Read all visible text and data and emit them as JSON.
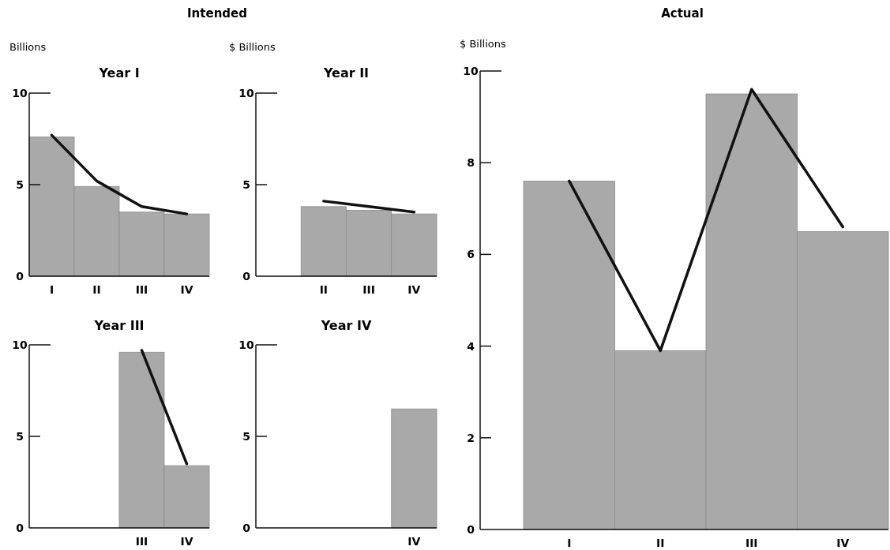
{
  "chart_data": [
    {
      "type": "bar",
      "title": "Year I",
      "ylabel": "Billions",
      "annotations": [
        "Intended"
      ],
      "categories": [
        "I",
        "II",
        "III",
        "IV"
      ],
      "ylim": [
        0,
        10
      ],
      "yticks": [
        0,
        5,
        10
      ],
      "series": [
        {
          "color": "#a9a9a9",
          "values": [
            7.6,
            4.9,
            3.5,
            3.4
          ]
        },
        {
          "type": "line",
          "color": "#111111",
          "values": [
            7.7,
            5.2,
            3.8,
            3.4
          ]
        }
      ]
    },
    {
      "type": "bar",
      "title": "Year II",
      "ylabel": "$ Billions",
      "categories": [
        null,
        "II",
        "III",
        "IV"
      ],
      "ylim": [
        0,
        10
      ],
      "yticks": [
        0,
        5,
        10
      ],
      "series": [
        {
          "color": "#a9a9a9",
          "values": [
            null,
            3.8,
            3.6,
            3.4
          ]
        },
        {
          "type": "line",
          "color": "#111111",
          "values": [
            null,
            4.1,
            3.8,
            3.5
          ]
        }
      ]
    },
    {
      "type": "bar",
      "title": "Year III",
      "categories": [
        null,
        null,
        "III",
        "IV"
      ],
      "ylim": [
        0,
        10
      ],
      "yticks": [
        0,
        5,
        10
      ],
      "series": [
        {
          "color": "#a9a9a9",
          "values": [
            null,
            null,
            9.6,
            3.4
          ]
        },
        {
          "type": "line",
          "color": "#111111",
          "values": [
            null,
            null,
            9.7,
            3.5
          ]
        }
      ]
    },
    {
      "type": "bar",
      "title": "Year IV",
      "categories": [
        null,
        null,
        null,
        "IV"
      ],
      "ylim": [
        0,
        10
      ],
      "yticks": [
        0,
        5,
        10
      ],
      "series": [
        {
          "color": "#a9a9a9",
          "values": [
            null,
            null,
            null,
            6.5
          ]
        }
      ]
    },
    {
      "type": "bar",
      "title": "Actual",
      "ylabel": "$ Billions",
      "categories": [
        "I",
        "II",
        "III",
        "IV"
      ],
      "ylim": [
        0,
        10
      ],
      "yticks": [
        0,
        2,
        4,
        6,
        8,
        10
      ],
      "series": [
        {
          "color": "#a9a9a9",
          "values": [
            7.6,
            3.9,
            9.5,
            6.5
          ]
        },
        {
          "type": "line",
          "color": "#111111",
          "values": [
            7.6,
            3.9,
            9.6,
            6.6
          ]
        }
      ]
    }
  ]
}
